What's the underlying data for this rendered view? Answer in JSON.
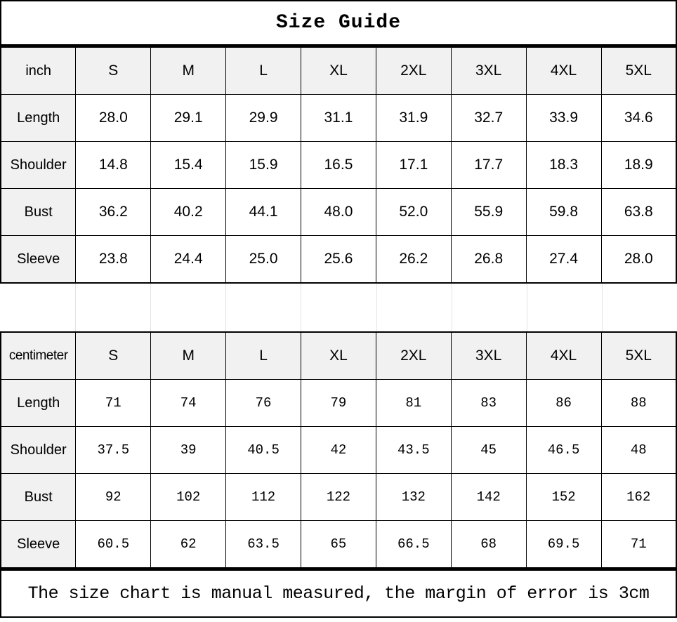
{
  "title": "Size Guide",
  "sizes": [
    "S",
    "M",
    "L",
    "XL",
    "2XL",
    "3XL",
    "4XL",
    "5XL"
  ],
  "inch_table": {
    "unit_label": "inch",
    "rows": [
      {
        "label": "Length",
        "values": [
          "28.0",
          "29.1",
          "29.9",
          "31.1",
          "31.9",
          "32.7",
          "33.9",
          "34.6"
        ]
      },
      {
        "label": "Shoulder",
        "values": [
          "14.8",
          "15.4",
          "15.9",
          "16.5",
          "17.1",
          "17.7",
          "18.3",
          "18.9"
        ]
      },
      {
        "label": "Bust",
        "values": [
          "36.2",
          "40.2",
          "44.1",
          "48.0",
          "52.0",
          "55.9",
          "59.8",
          "63.8"
        ]
      },
      {
        "label": "Sleeve",
        "values": [
          "23.8",
          "24.4",
          "25.0",
          "25.6",
          "26.2",
          "26.8",
          "27.4",
          "28.0"
        ]
      }
    ]
  },
  "cm_table": {
    "unit_label": "centimeter",
    "rows": [
      {
        "label": "Length",
        "values": [
          "71",
          "74",
          "76",
          "79",
          "81",
          "83",
          "86",
          "88"
        ]
      },
      {
        "label": "Shoulder",
        "values": [
          "37.5",
          "39",
          "40.5",
          "42",
          "43.5",
          "45",
          "46.5",
          "48"
        ]
      },
      {
        "label": "Bust",
        "values": [
          "92",
          "102",
          "112",
          "122",
          "132",
          "142",
          "152",
          "162"
        ]
      },
      {
        "label": "Sleeve",
        "values": [
          "60.5",
          "62",
          "63.5",
          "65",
          "66.5",
          "68",
          "69.5",
          "71"
        ]
      }
    ]
  },
  "note": "The size chart is manual measured, the margin of error is 3cm",
  "colors": {
    "header_bg": "#f1f1f1",
    "border": "#000000",
    "gap_line": "#e3e3e3"
  }
}
